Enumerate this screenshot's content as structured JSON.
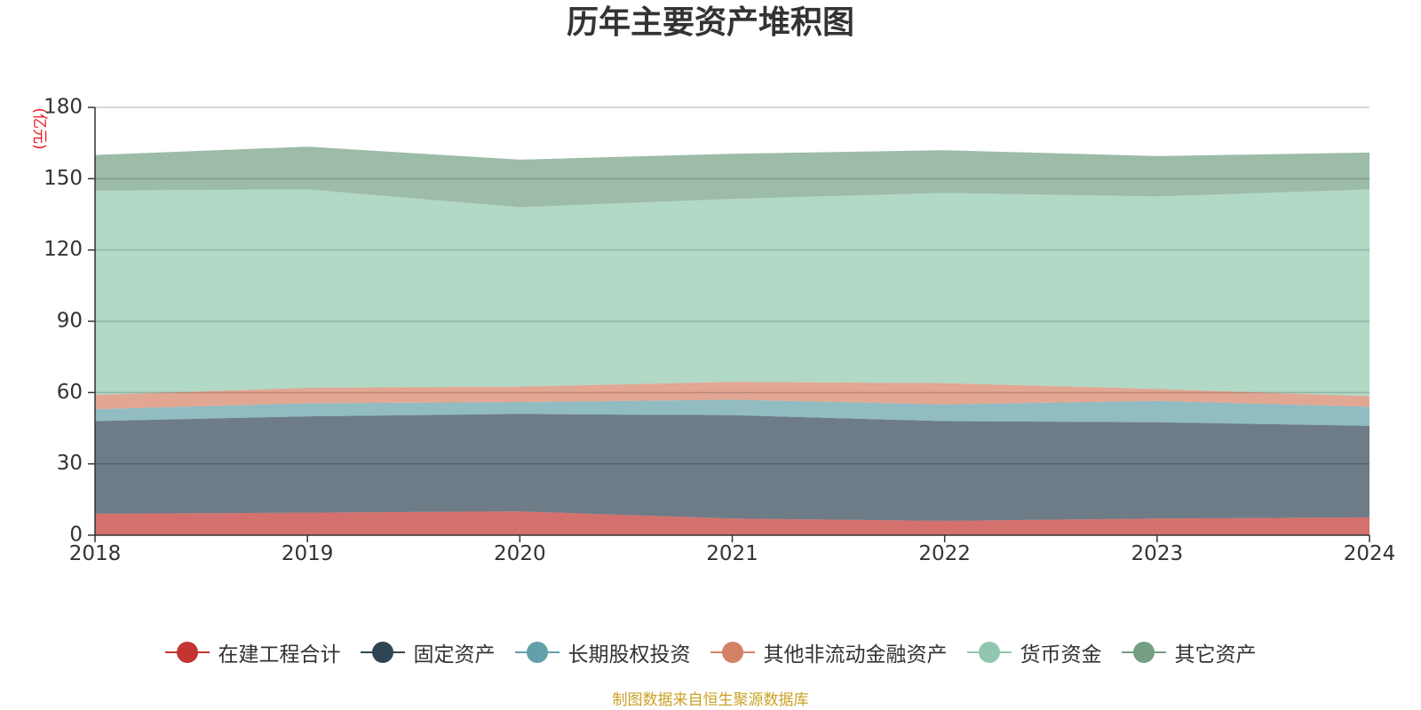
{
  "chart_data": {
    "type": "area",
    "stacked": true,
    "title": "历年主要资产堆积图",
    "unit_label": "(亿元)",
    "x": [
      "2018",
      "2019",
      "2020",
      "2021",
      "2022",
      "2023",
      "2024"
    ],
    "ylim": [
      0,
      180
    ],
    "yticks": [
      0,
      30,
      60,
      90,
      120,
      150,
      180
    ],
    "grid": true,
    "legend_position": "bottom",
    "series": [
      {
        "name": "在建工程合计",
        "color": "#c23531",
        "values": [
          9.0,
          9.5,
          10.0,
          7.0,
          6.0,
          7.0,
          7.5
        ]
      },
      {
        "name": "固定资产",
        "color": "#2f4554",
        "values": [
          39.0,
          40.5,
          41.0,
          43.5,
          42.0,
          40.5,
          38.5
        ]
      },
      {
        "name": "长期股权投资",
        "color": "#61a0a8",
        "values": [
          5.0,
          5.5,
          5.0,
          6.5,
          7.0,
          9.0,
          8.0
        ]
      },
      {
        "name": "其他非流动金融资产",
        "color": "#d48265",
        "values": [
          6.0,
          6.5,
          6.5,
          7.5,
          9.0,
          5.0,
          4.5
        ]
      },
      {
        "name": "货币资金",
        "color": "#91c7ae",
        "values": [
          86.0,
          83.5,
          75.5,
          77.0,
          80.0,
          81.0,
          87.0
        ]
      },
      {
        "name": "其它资产",
        "color": "#749f83",
        "values": [
          15.0,
          18.0,
          20.0,
          19.0,
          18.0,
          17.0,
          15.5
        ]
      }
    ]
  },
  "footer": {
    "source": "制图数据来自恒生聚源数据库"
  }
}
